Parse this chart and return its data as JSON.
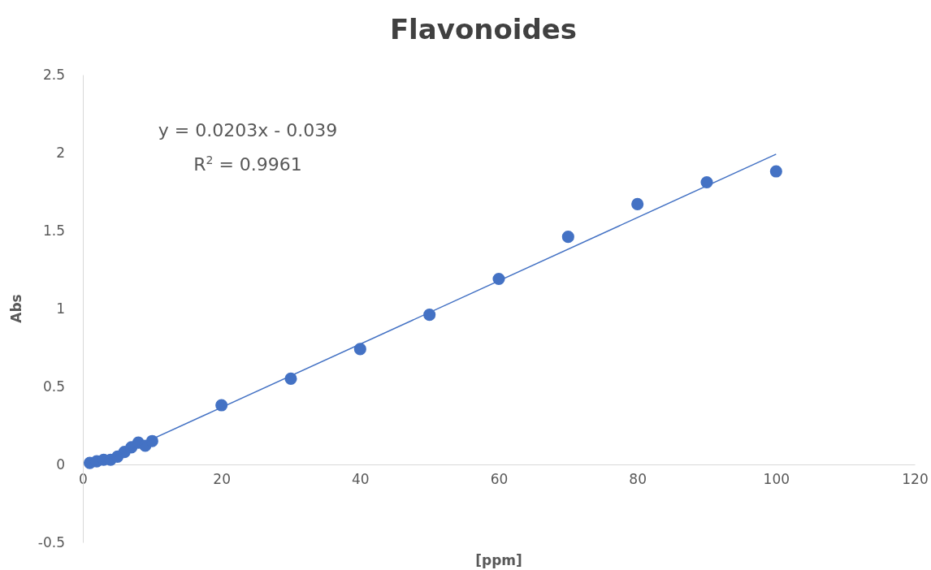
{
  "chart_data": {
    "type": "scatter",
    "title": "Flavonoides",
    "xlabel": "[ppm]",
    "ylabel": "Abs",
    "xlim": [
      0,
      120
    ],
    "xticks": [
      0,
      20,
      40,
      60,
      80,
      100,
      120
    ],
    "ylim": [
      -0.5,
      2.5
    ],
    "yticks": [
      -0.5,
      0,
      0.5,
      1,
      1.5,
      2,
      2.5
    ],
    "grid": false,
    "annotations": [
      "y = 0.0203x - 0.039",
      "R$^{2}$ = 0.9961"
    ],
    "series": [
      {
        "marker": "circle",
        "color": "#4472c4",
        "x": [
          1,
          2,
          3,
          4,
          5,
          6,
          7,
          8,
          9,
          10,
          20,
          30,
          40,
          50,
          60,
          70,
          80,
          90,
          100
        ],
        "values": [
          0.01,
          0.02,
          0.03,
          0.03,
          0.05,
          0.08,
          0.11,
          0.14,
          0.12,
          0.15,
          0.38,
          0.55,
          0.74,
          0.96,
          1.19,
          1.46,
          1.67,
          1.81,
          1.88
        ]
      },
      {
        "type": "line",
        "color": "#4472c4",
        "x": [
          1,
          100
        ],
        "values": [
          -0.02,
          1.99
        ]
      }
    ]
  }
}
